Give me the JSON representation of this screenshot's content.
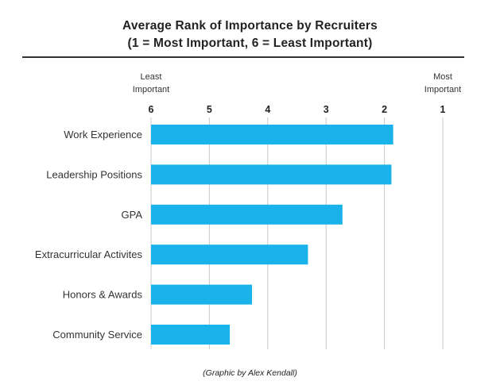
{
  "chart_data": {
    "type": "bar",
    "orientation": "horizontal",
    "title": "Average Rank of Importance by Recruiters",
    "subtitle": "(1 = Most Important, 6 = Least Important)",
    "categories": [
      "Work Experience",
      "Leadership Positions",
      "GPA",
      "Extracurricular Activites",
      "Honors & Awards",
      "Community Service"
    ],
    "values": [
      1.85,
      1.88,
      2.72,
      3.31,
      4.27,
      4.65
    ],
    "xlim": [
      6,
      1
    ],
    "xticks": [
      "6",
      "5",
      "4",
      "3",
      "2",
      "1"
    ],
    "axis_end_labels": {
      "left": [
        "Least",
        "Important"
      ],
      "right": [
        "Most",
        "Important"
      ]
    },
    "grid": true,
    "bar_color": "#19b2ea"
  },
  "caption": "(Graphic by Alex Kendall)"
}
